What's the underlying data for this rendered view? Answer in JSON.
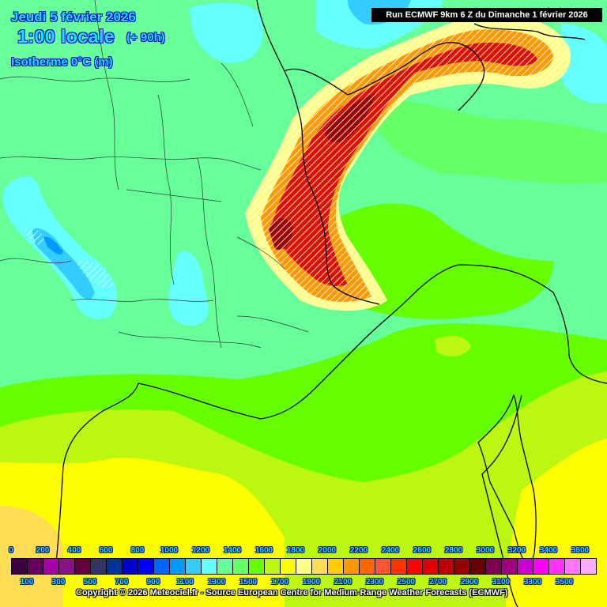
{
  "header": {
    "date": "Jeudi 5 février 2026",
    "time": "1:00 locale",
    "lead_time": "(+ 90h)",
    "parameter": "Isotherme 0°C (m)",
    "run_info": "Run ECMWF 9km 6 Z du Dimanche 1 février 2026"
  },
  "map": {
    "region": "France (south-east), Alps, Corsica",
    "colors": {
      "background_green": "#66ff99",
      "light_green": "#66ff66",
      "bright_green": "#66ff00",
      "yellow_green": "#bbf711",
      "yellow": "#ffff00",
      "pale_yellow": "#ffff88",
      "cyan": "#66ffff",
      "sky_blue": "#33ccff",
      "blue": "#0099ff",
      "alpine_orange": "#ff9900",
      "alpine_red": "#cc0000",
      "alpine_darkred": "#990000",
      "border_line": "#000000"
    }
  },
  "legend": {
    "unit": "m",
    "top_labels": [
      "0",
      "200",
      "400",
      "600",
      "800",
      "1000",
      "1200",
      "1400",
      "1600",
      "1800",
      "2000",
      "2200",
      "2400",
      "2600",
      "2800",
      "3000",
      "3200",
      "3400",
      "3600"
    ],
    "bottom_labels": [
      "100",
      "300",
      "500",
      "700",
      "900",
      "1100",
      "1300",
      "1500",
      "1700",
      "1900",
      "2100",
      "2300",
      "2500",
      "2700",
      "2900",
      "3100",
      "3300",
      "3500"
    ],
    "swatch_colors": [
      "#3d0040",
      "#66005f",
      "#a600a6",
      "#871487",
      "#630040",
      "#333366",
      "#003399",
      "#0000cc",
      "#0000ff",
      "#0066ff",
      "#0099ff",
      "#33ccff",
      "#66ffff",
      "#66ff99",
      "#66ff66",
      "#66ff00",
      "#bbf711",
      "#ffff00",
      "#ffff88",
      "#ffdd55",
      "#ffcc00",
      "#ff9900",
      "#ff6600",
      "#ff5533",
      "#ff3300",
      "#ff0000",
      "#dd0000",
      "#bb0000",
      "#990000",
      "#660000",
      "#800050",
      "#a00080",
      "#cc00cc",
      "#ff00ff",
      "#ff33ff",
      "#ff77ff",
      "#ffaaff"
    ],
    "copyright": "Copyright © 2026 Meteociel.fr - Source European Centre for Medium-Range Weather Forecasts (ECMWF)"
  }
}
